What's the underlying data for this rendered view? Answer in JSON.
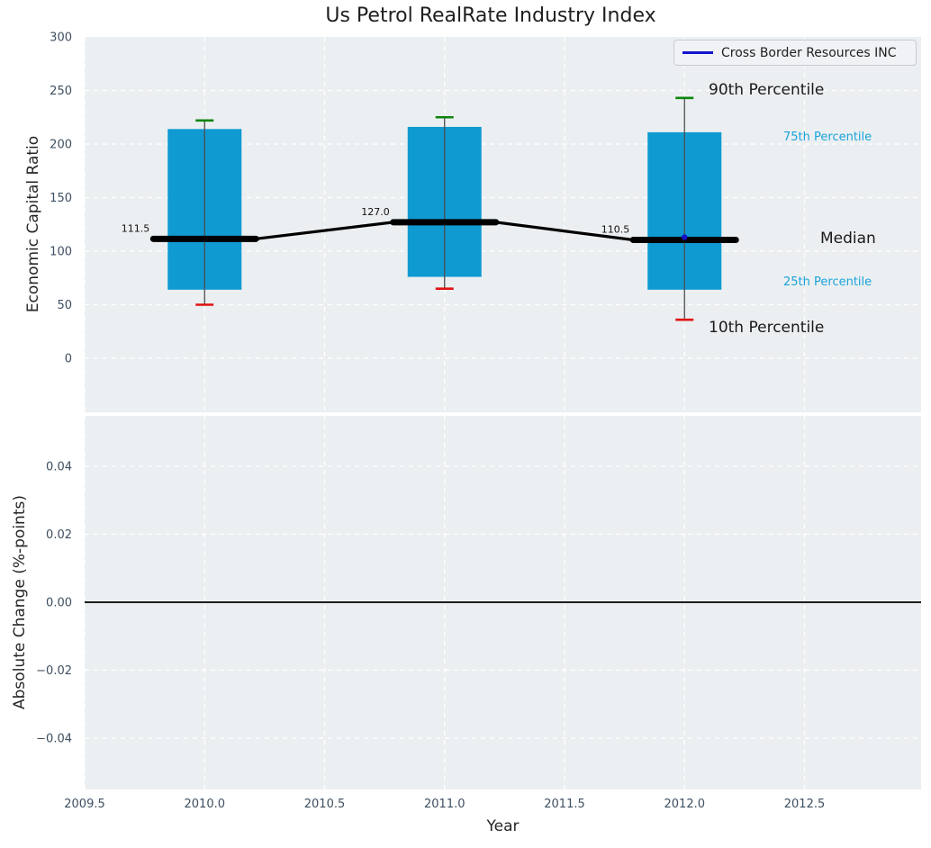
{
  "chart_data": {
    "type": "box",
    "title": "Us Petrol RealRate Industry Index",
    "xlabel": "Year",
    "xticks": [
      {
        "v": 2009.5,
        "label": "2009.5"
      },
      {
        "v": 2010.0,
        "label": "2010.0"
      },
      {
        "v": 2010.5,
        "label": "2010.5"
      },
      {
        "v": 2011.0,
        "label": "2011.0"
      },
      {
        "v": 2011.5,
        "label": "2011.5"
      },
      {
        "v": 2012.0,
        "label": "2012.0"
      },
      {
        "v": 2012.5,
        "label": "2012.5"
      }
    ],
    "xlim": [
      2009.5,
      2013.0
    ],
    "grid": {
      "on": true,
      "color": "#ffffff",
      "style": "dashed"
    },
    "background_color": "#ebeff1",
    "top_panel": {
      "ylabel": "Economic Capital Ratio",
      "ylim": [
        -50,
        300
      ],
      "yticks": [
        {
          "v": 300,
          "label": "300"
        },
        {
          "v": 250,
          "label": "250"
        },
        {
          "v": 200,
          "label": "200"
        },
        {
          "v": 150,
          "label": "150"
        },
        {
          "v": 100,
          "label": "100"
        },
        {
          "v": 50,
          "label": "50"
        },
        {
          "v": 0,
          "label": "0"
        }
      ],
      "box_color": "#109ad2",
      "whisker_color": "#4d4d4d",
      "cap_top_color": "#0e850e",
      "cap_bottom_color": "#e01212",
      "median_line_color": "#000000",
      "boxes": [
        {
          "year": 2010,
          "p10": 50,
          "p25": 64,
          "median": 111.5,
          "p75": 214,
          "p90": 222,
          "median_label": "111.5"
        },
        {
          "year": 2011,
          "p10": 65,
          "p25": 76,
          "median": 127.0,
          "p75": 216,
          "p90": 225,
          "median_label": "127.0"
        },
        {
          "year": 2012,
          "p10": 36,
          "p25": 64,
          "median": 110.5,
          "p75": 211,
          "p90": 243,
          "median_label": "110.5"
        }
      ]
    },
    "bottom_panel": {
      "ylabel": "Absolute Change (%-points)",
      "ylim": [
        -0.055,
        0.055
      ],
      "yticks": [
        {
          "v": 0.04,
          "label": "0.04"
        },
        {
          "v": 0.02,
          "label": "0.02"
        },
        {
          "v": 0.0,
          "label": "0.00"
        },
        {
          "v": -0.02,
          "label": "−0.02"
        },
        {
          "v": -0.04,
          "label": "−0.04"
        }
      ],
      "zero_line_value": 0.0,
      "zero_line_color": "#000000"
    },
    "series": [
      {
        "name": "Cross Border Resources INC",
        "color": "#1414cc",
        "points": [
          {
            "x": 2012,
            "y": 113
          }
        ]
      }
    ],
    "annotations": {
      "p90": {
        "text": "90th Percentile",
        "color": "#1a1a1a"
      },
      "p75": {
        "text": "75th Percentile",
        "color": "#1ca3db"
      },
      "median": {
        "text": "Median",
        "color": "#1a1a1a"
      },
      "p25": {
        "text": "25th Percentile",
        "color": "#1ca3db"
      },
      "p10": {
        "text": "10th Percentile",
        "color": "#1a1a1a"
      }
    },
    "tick_label_color": "#3e4f60"
  }
}
